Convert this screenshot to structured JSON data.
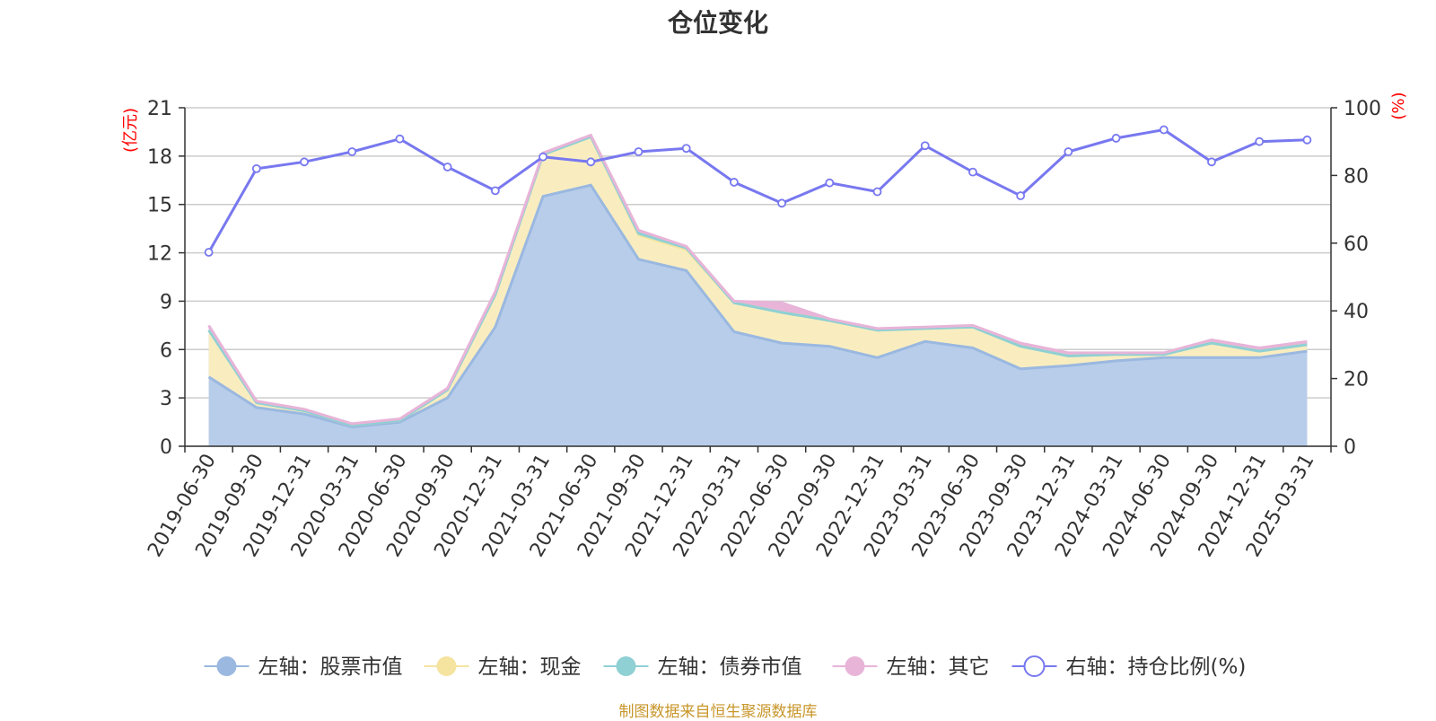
{
  "chart_data": {
    "type": "area",
    "title": "仓位变化",
    "left_axis_unit": "(亿元)",
    "right_axis_unit": "(%)",
    "left_ylim": [
      0,
      21
    ],
    "left_ticks": [
      0,
      3,
      6,
      9,
      12,
      15,
      18,
      21
    ],
    "right_ylim": [
      0,
      100
    ],
    "right_ticks": [
      0,
      20,
      40,
      60,
      80,
      100
    ],
    "categories": [
      "2019-06-30",
      "2019-09-30",
      "2019-12-31",
      "2020-03-31",
      "2020-06-30",
      "2020-09-30",
      "2020-12-31",
      "2021-03-31",
      "2021-06-30",
      "2021-09-30",
      "2021-12-31",
      "2022-03-31",
      "2022-06-30",
      "2022-09-30",
      "2022-12-31",
      "2023-03-31",
      "2023-06-30",
      "2023-09-30",
      "2023-12-31",
      "2024-03-31",
      "2024-06-30",
      "2024-09-30",
      "2024-12-31",
      "2025-03-31"
    ],
    "series": [
      {
        "name": "左轴：股票市值",
        "axis": "left",
        "color": "#9ab8e0",
        "fill": "#b8cdea",
        "values": [
          4.3,
          2.4,
          2.0,
          1.2,
          1.5,
          3.0,
          7.4,
          15.5,
          16.2,
          11.6,
          10.9,
          7.1,
          6.4,
          6.2,
          5.5,
          6.5,
          6.1,
          4.8,
          5.0,
          5.3,
          5.5,
          5.5,
          5.5,
          5.9
        ]
      },
      {
        "name": "左轴：现金",
        "axis": "left",
        "color": "#f5e4a0",
        "fill": "#f9edc0",
        "values": [
          2.9,
          0.3,
          0.2,
          0.1,
          0.1,
          0.5,
          2.0,
          2.6,
          3.0,
          1.5,
          1.3,
          1.8,
          1.9,
          1.6,
          1.7,
          0.8,
          1.3,
          1.4,
          0.6,
          0.4,
          0.2,
          0.9,
          0.4,
          0.4
        ]
      },
      {
        "name": "左轴：债券市值",
        "axis": "left",
        "color": "#8fd0d4",
        "fill": "#8fd0d4",
        "values": [
          0,
          0,
          0,
          0,
          0,
          0,
          0,
          0,
          0,
          0.1,
          0.1,
          0,
          0,
          0,
          0,
          0,
          0,
          0,
          0,
          0,
          0,
          0,
          0,
          0
        ]
      },
      {
        "name": "左轴：其它",
        "axis": "left",
        "color": "#e8b4d8",
        "fill": "#e8b4d8",
        "values": [
          0.3,
          0.1,
          0.1,
          0.1,
          0.1,
          0.1,
          0.2,
          0.1,
          0.1,
          0.2,
          0.1,
          0.1,
          0.6,
          0.1,
          0.1,
          0.1,
          0.1,
          0.2,
          0.2,
          0.1,
          0.1,
          0.2,
          0.2,
          0.2
        ]
      },
      {
        "name": "右轴：持仓比例(%)",
        "axis": "right",
        "color": "#7878f0",
        "values": [
          57.3,
          82.0,
          84.0,
          87.0,
          90.8,
          82.5,
          75.5,
          85.5,
          84.0,
          87.0,
          88.0,
          78.0,
          71.8,
          77.8,
          75.2,
          88.8,
          81.0,
          74.0,
          87.0,
          91.0,
          93.5,
          84.0,
          90.0,
          90.5
        ]
      }
    ],
    "legend_position": "bottom-center"
  },
  "source_note": "制图数据来自恒生聚源数据库"
}
